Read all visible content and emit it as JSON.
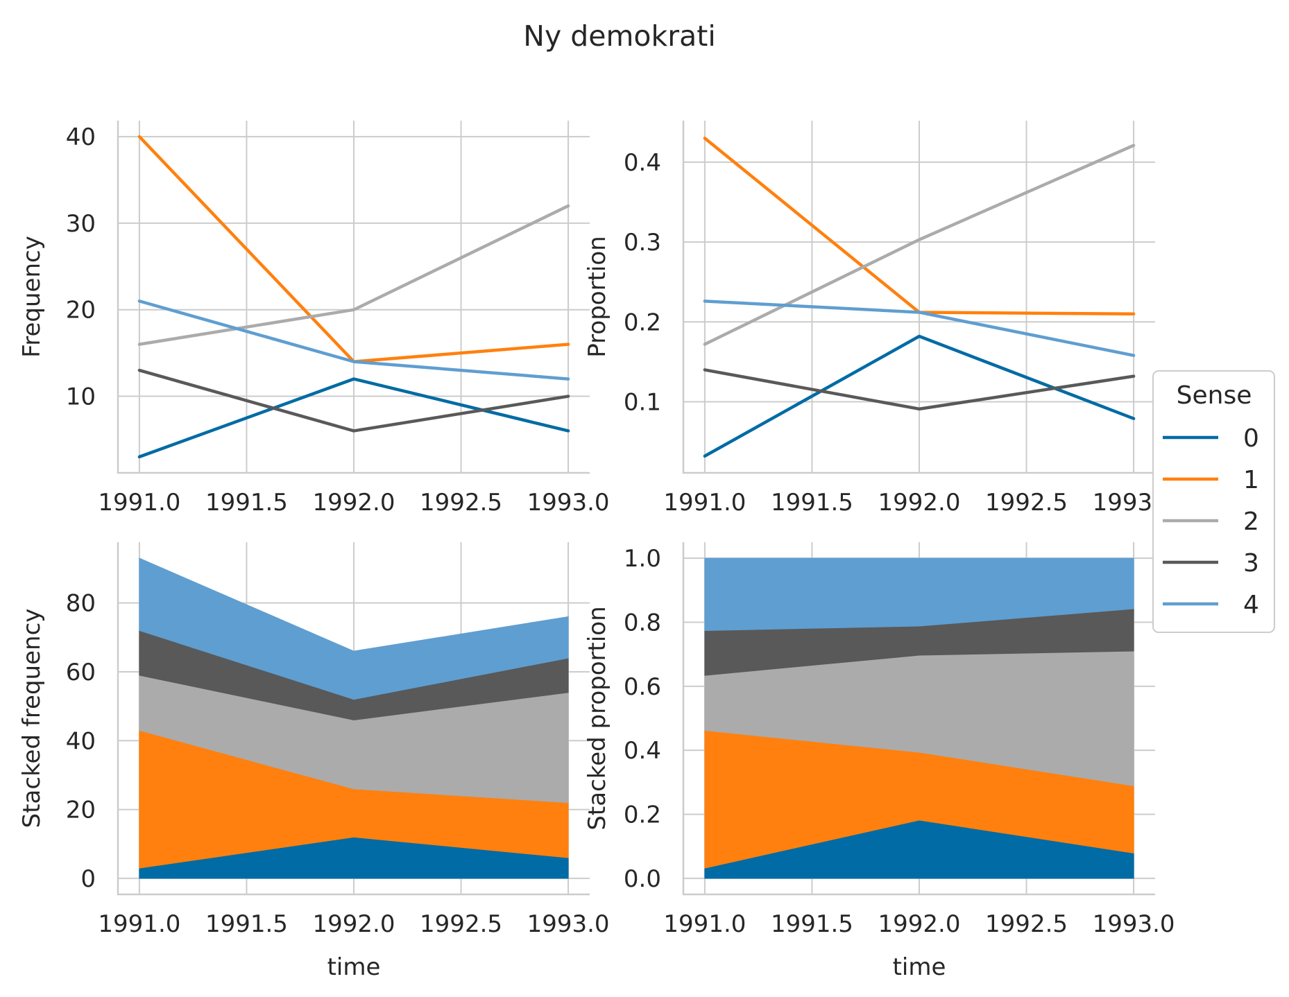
{
  "title": "Ny demokrati",
  "legend": {
    "title": "Sense",
    "placement": "center-right",
    "entries": [
      "0",
      "1",
      "2",
      "3",
      "4"
    ]
  },
  "colors": {
    "0": "#006ba4",
    "1": "#ff800e",
    "2": "#ababab",
    "3": "#595959",
    "4": "#5f9ed1",
    "grid": "#cccccc",
    "text": "#262626"
  },
  "chart_data": [
    {
      "type": "line",
      "ylabel": "Frequency",
      "xlabel": "",
      "x": [
        1991,
        1992,
        1993
      ],
      "xlim": [
        1990.9,
        1993.1
      ],
      "ylim": [
        1.15,
        41.85
      ],
      "xticks": [
        "1991.0",
        "1991.5",
        "1992.0",
        "1992.5",
        "1993.0"
      ],
      "yticks": [
        "10",
        "20",
        "30",
        "40"
      ],
      "series": [
        {
          "name": "0",
          "values": [
            3,
            12,
            6
          ]
        },
        {
          "name": "1",
          "values": [
            40,
            14,
            16
          ]
        },
        {
          "name": "2",
          "values": [
            16,
            20,
            32
          ]
        },
        {
          "name": "3",
          "values": [
            13,
            6,
            10
          ]
        },
        {
          "name": "4",
          "values": [
            21,
            14,
            12
          ]
        }
      ]
    },
    {
      "type": "line",
      "ylabel": "Proportion",
      "xlabel": "",
      "x": [
        1991,
        1992,
        1993
      ],
      "xlim": [
        1990.9,
        1993.1
      ],
      "ylim": [
        0.011,
        0.452
      ],
      "xticks": [
        "1991.0",
        "1991.5",
        "1992.0",
        "1992.5",
        "1993.0"
      ],
      "yticks": [
        "0.1",
        "0.2",
        "0.3",
        "0.4"
      ],
      "series": [
        {
          "name": "0",
          "values": [
            0.032,
            0.182,
            0.079
          ]
        },
        {
          "name": "1",
          "values": [
            0.43,
            0.212,
            0.21
          ]
        },
        {
          "name": "2",
          "values": [
            0.172,
            0.303,
            0.421
          ]
        },
        {
          "name": "3",
          "values": [
            0.14,
            0.091,
            0.132
          ]
        },
        {
          "name": "4",
          "values": [
            0.226,
            0.212,
            0.158
          ]
        }
      ]
    },
    {
      "type": "area",
      "ylabel": "Stacked frequency",
      "xlabel": "time",
      "x": [
        1991,
        1992,
        1993
      ],
      "xlim": [
        1990.9,
        1993.1
      ],
      "ylim": [
        -4.65,
        97.65
      ],
      "xticks": [
        "1991.0",
        "1991.5",
        "1992.0",
        "1992.5",
        "1993.0"
      ],
      "yticks": [
        "0",
        "20",
        "40",
        "60",
        "80"
      ],
      "series": [
        {
          "name": "0",
          "values": [
            3,
            12,
            6
          ]
        },
        {
          "name": "1",
          "values": [
            40,
            14,
            16
          ]
        },
        {
          "name": "2",
          "values": [
            16,
            20,
            32
          ]
        },
        {
          "name": "3",
          "values": [
            13,
            6,
            10
          ]
        },
        {
          "name": "4",
          "values": [
            21,
            14,
            12
          ]
        }
      ]
    },
    {
      "type": "area",
      "ylabel": "Stacked proportion",
      "xlabel": "time",
      "x": [
        1991,
        1992,
        1993
      ],
      "xlim": [
        1990.9,
        1993.1
      ],
      "ylim": [
        -0.05,
        1.05
      ],
      "xticks": [
        "1991.0",
        "1991.5",
        "1992.0",
        "1992.5",
        "1993.0"
      ],
      "yticks": [
        "0.0",
        "0.2",
        "0.4",
        "0.6",
        "0.8",
        "1.0"
      ],
      "series": [
        {
          "name": "0",
          "values": [
            0.032,
            0.182,
            0.079
          ]
        },
        {
          "name": "1",
          "values": [
            0.43,
            0.212,
            0.21
          ]
        },
        {
          "name": "2",
          "values": [
            0.172,
            0.303,
            0.421
          ]
        },
        {
          "name": "3",
          "values": [
            0.14,
            0.091,
            0.132
          ]
        },
        {
          "name": "4",
          "values": [
            0.226,
            0.212,
            0.158
          ]
        }
      ]
    }
  ]
}
